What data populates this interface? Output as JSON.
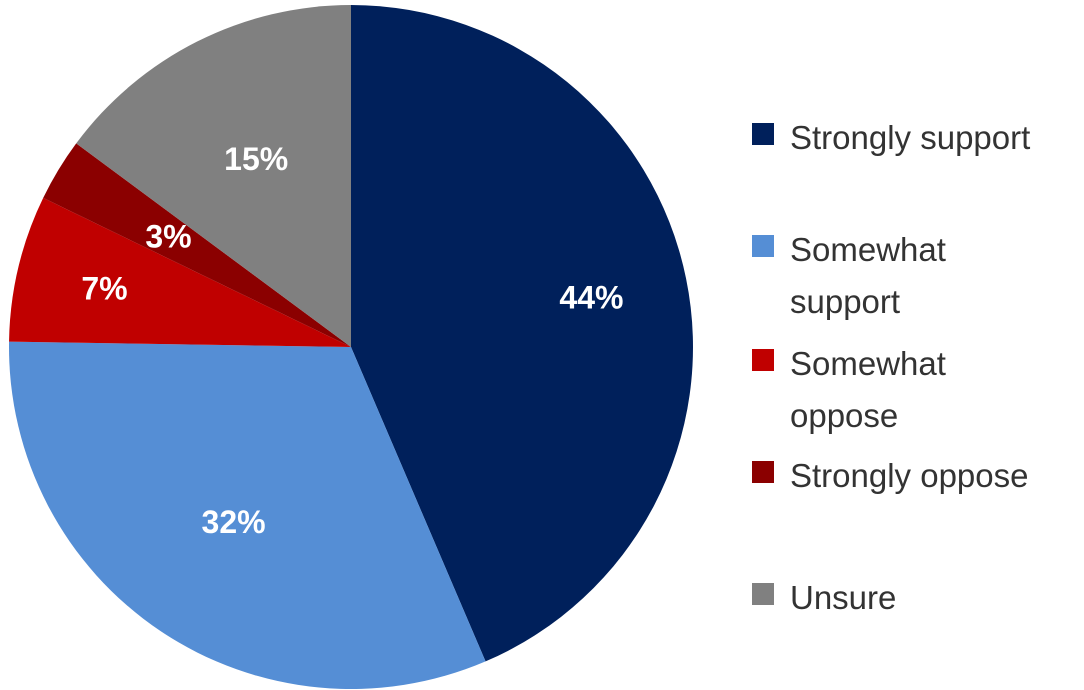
{
  "chart_data": {
    "type": "pie",
    "title": "",
    "slices": [
      {
        "label": "Strongly support",
        "value": 44,
        "value_label": "44%",
        "color": "#00205B"
      },
      {
        "label": "Somewhat support",
        "value": 32,
        "value_label": "32%",
        "color": "#558ED5"
      },
      {
        "label": "Somewhat oppose",
        "value": 7,
        "value_label": "7%",
        "color": "#C00000"
      },
      {
        "label": "Strongly oppose",
        "value": 3,
        "value_label": "3%",
        "color": "#8B0000"
      },
      {
        "label": "Unsure",
        "value": 15,
        "value_label": "15%",
        "color": "#808080"
      }
    ],
    "legend_position": "right",
    "start_angle": "12 o'clock",
    "direction": "clockwise"
  },
  "legend": {
    "items": [
      {
        "line1": "Strongly support",
        "line2": ""
      },
      {
        "line1": "Somewhat",
        "line2": "support"
      },
      {
        "line1": "Somewhat",
        "line2": "oppose"
      },
      {
        "line1": "Strongly oppose",
        "line2": ""
      },
      {
        "line1": "Unsure",
        "line2": ""
      }
    ]
  }
}
